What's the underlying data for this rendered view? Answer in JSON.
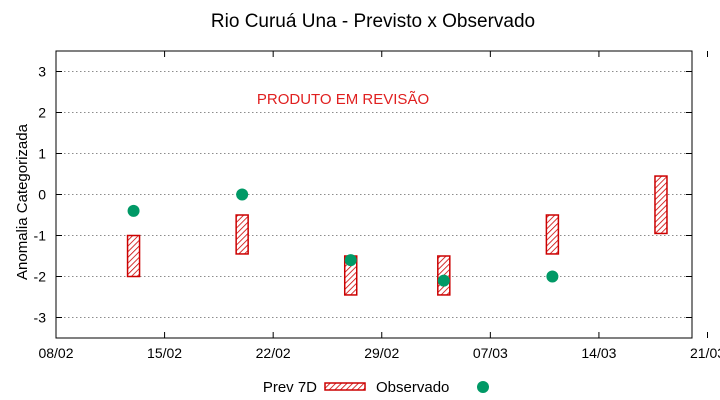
{
  "chart_data": {
    "type": "scatter",
    "title": "Rio Curuá Una - Previsto x Observado",
    "xlabel": "",
    "ylabel": "Anomalia Categorizada",
    "ylim": [
      -3.5,
      3.5
    ],
    "yticks": [
      3,
      2,
      1,
      0,
      -1,
      -2,
      -3
    ],
    "xlim": [
      "2023-02-08",
      "2023-03-21"
    ],
    "xtick_labels": [
      "08/02",
      "15/02",
      "22/02",
      "29/02",
      "07/03",
      "14/03",
      "21/03"
    ],
    "grid": true,
    "annotation": {
      "text": "PRODUTO EM REVISÃO",
      "color": "#e02020"
    },
    "legend": {
      "placement": "bottom",
      "entries": [
        {
          "label": "Prev 7D",
          "marker": "hatched-box"
        },
        {
          "label": "Observado",
          "marker": "circle"
        }
      ]
    },
    "colors": {
      "forecast": "#cc0000",
      "observed": "#009966"
    },
    "series": [
      {
        "name": "Prev 7D",
        "type": "range-box",
        "points": [
          {
            "x": "2023-02-13",
            "low": -2.0,
            "high": -1.0
          },
          {
            "x": "2023-02-20",
            "low": -1.45,
            "high": -0.5
          },
          {
            "x": "2023-02-27",
            "low": -2.45,
            "high": -1.5
          },
          {
            "x": "2023-03-05",
            "low": -2.45,
            "high": -1.5
          },
          {
            "x": "2023-03-12",
            "low": -1.45,
            "high": -0.5
          },
          {
            "x": "2023-03-19",
            "low": -0.95,
            "high": 0.45
          }
        ]
      },
      {
        "name": "Observado",
        "type": "scatter",
        "points": [
          {
            "x": "2023-02-13",
            "y": -0.4
          },
          {
            "x": "2023-02-20",
            "y": 0.0
          },
          {
            "x": "2023-02-27",
            "y": -1.6
          },
          {
            "x": "2023-03-05",
            "y": -2.1
          },
          {
            "x": "2023-03-12",
            "y": -2.0
          }
        ]
      }
    ]
  }
}
